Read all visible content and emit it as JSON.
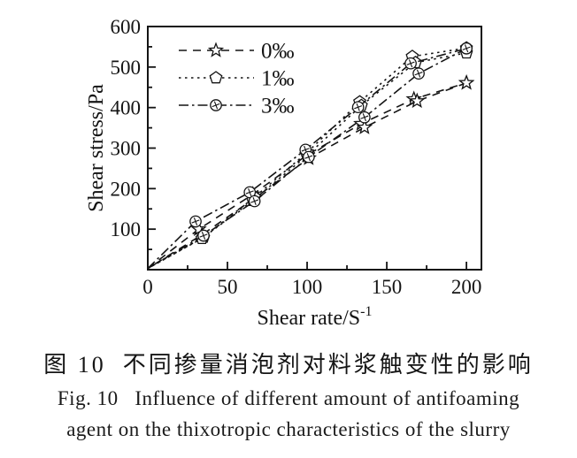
{
  "figure": {
    "caption_zh": "图 10  不同掺量消泡剂对料浆触变性的影响",
    "caption_en_line1": "Fig. 10   Influence of different amount of antifoaming",
    "caption_en_line2": "agent on the thixotropic characteristics of the slurry"
  },
  "chart_data": {
    "type": "line",
    "title": "",
    "xlabel": "Shear rate/S⁻¹",
    "xlabel_base": "Shear rate/S",
    "xlabel_sup": "-1",
    "ylabel": "Shear stress/Pa",
    "xlim": [
      0,
      209.4
    ],
    "ylim": [
      0,
      600
    ],
    "x_ticks": [
      0,
      50,
      100,
      150,
      200
    ],
    "x_minor_ticks": [
      25,
      75,
      125,
      175
    ],
    "y_ticks": [
      100,
      200,
      300,
      400,
      500,
      600
    ],
    "y_minor_ticks": [
      50,
      150,
      250,
      350,
      450,
      550
    ],
    "grid": false,
    "legend_position": "upper-left",
    "axis_color": "#141414",
    "series": [
      {
        "name": "0‰",
        "marker": "star",
        "line_style": "dashed",
        "points_up": [
          [
            0,
            3
          ],
          [
            32,
            100
          ],
          [
            66,
            186
          ],
          [
            100,
            283
          ],
          [
            134,
            360
          ],
          [
            167,
            421
          ],
          [
            200,
            461
          ]
        ],
        "points_down": [
          [
            200,
            461
          ],
          [
            169,
            416
          ],
          [
            136,
            351
          ],
          [
            101,
            275
          ],
          [
            67,
            176
          ],
          [
            34,
            86
          ],
          [
            0,
            3
          ]
        ]
      },
      {
        "name": "1‰",
        "marker": "pentagon",
        "line_style": "dotted",
        "points_up": [
          [
            0,
            3
          ],
          [
            35,
            80
          ],
          [
            67,
            179
          ],
          [
            100,
            289
          ],
          [
            133,
            414
          ],
          [
            166,
            526
          ],
          [
            200,
            547
          ]
        ],
        "points_down": [
          [
            200,
            535
          ],
          [
            168,
            511
          ],
          [
            134,
            405
          ],
          [
            100,
            282
          ],
          [
            66,
            171
          ],
          [
            34,
            77
          ],
          [
            0,
            3
          ]
        ]
      },
      {
        "name": "3‰",
        "marker": "circle-cross",
        "line_style": "dash-dot",
        "points_up": [
          [
            0,
            3
          ],
          [
            30,
            119
          ],
          [
            64,
            191
          ],
          [
            99,
            296
          ],
          [
            132,
            401
          ],
          [
            165,
            509
          ],
          [
            200,
            546
          ]
        ],
        "points_down": [
          [
            200,
            546
          ],
          [
            170,
            484
          ],
          [
            136,
            376
          ],
          [
            101,
            278
          ],
          [
            67,
            169
          ],
          [
            35,
            84
          ],
          [
            0,
            3
          ]
        ]
      }
    ]
  }
}
